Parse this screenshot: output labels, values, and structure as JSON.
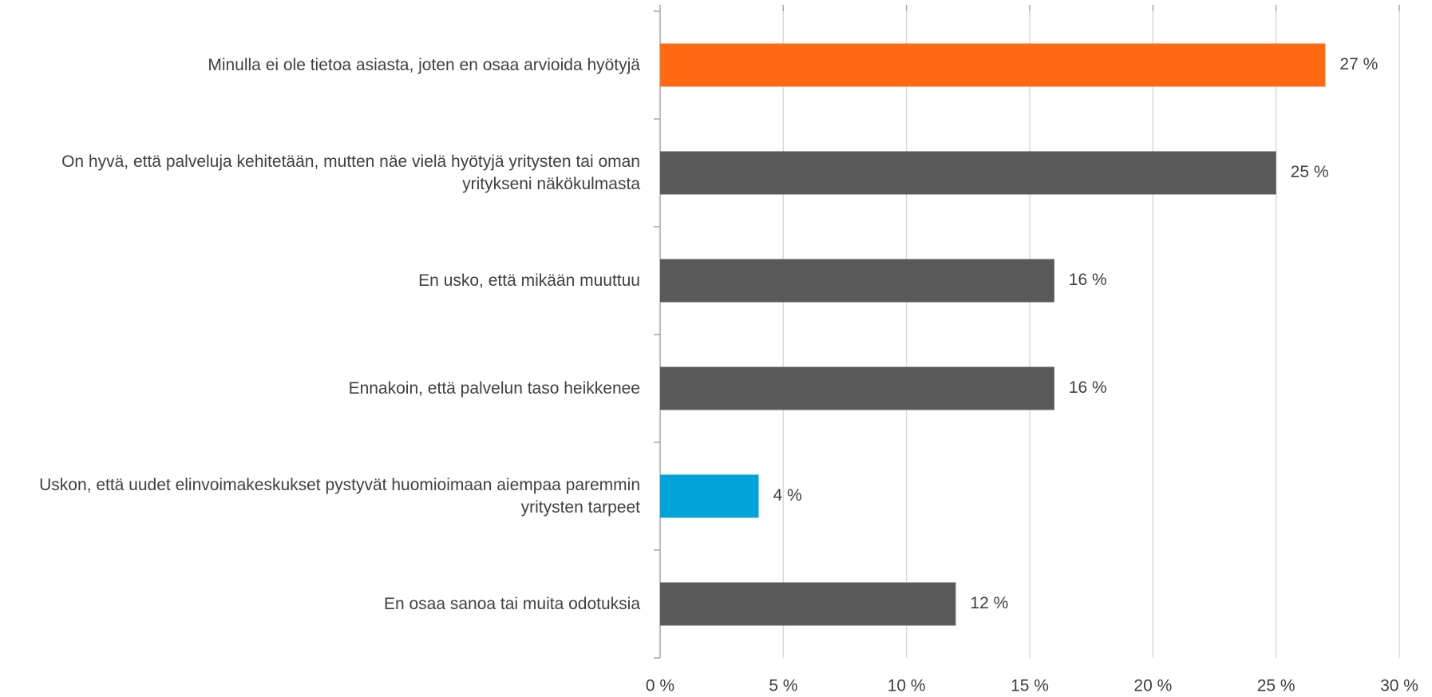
{
  "chart_data": {
    "type": "bar",
    "orientation": "horizontal",
    "categories": [
      "Minulla ei ole tietoa asiasta, joten en osaa arvioida hyötyjä",
      "On hyvä, että palveluja kehitetään, mutten näe vielä hyötyjä yritysten tai oman yritykseni näkökulmasta",
      "En usko, että mikään muuttuu",
      "Ennakoin, että palvelun taso heikkenee",
      "Uskon, että uudet elinvoimakeskukset pystyvät huomioimaan aiempaa paremmin yritysten tarpeet",
      "En osaa sanoa tai muita odotuksia"
    ],
    "values": [
      27,
      25,
      16,
      16,
      4,
      12
    ],
    "value_labels": [
      "27 %",
      "25 %",
      "16 %",
      "16 %",
      "4 %",
      "12 %"
    ],
    "colors": [
      "#ff6a13",
      "#595959",
      "#595959",
      "#595959",
      "#00a3da",
      "#595959"
    ],
    "xlim": [
      0,
      30
    ],
    "xticks": [
      {
        "value": 0,
        "label": "0 %"
      },
      {
        "value": 5,
        "label": "5 %"
      },
      {
        "value": 10,
        "label": "10 %"
      },
      {
        "value": 15,
        "label": "15 %"
      },
      {
        "value": 20,
        "label": "20 %"
      },
      {
        "value": 25,
        "label": "25 %"
      },
      {
        "value": 30,
        "label": "30 %"
      }
    ],
    "grid": true
  }
}
